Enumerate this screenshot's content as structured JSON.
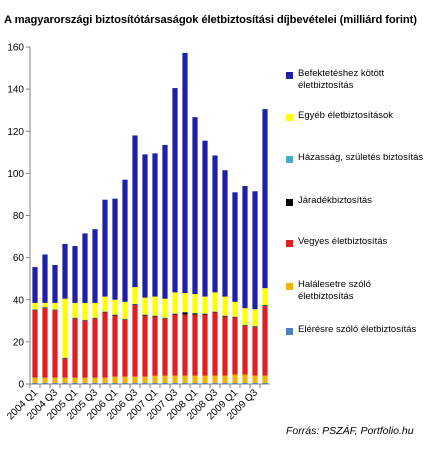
{
  "title": "A magyarországi biztosítótársaságok életbiztosítási díjbevételei (milliárd forint)",
  "source": "Forrás: PSZÁF, Portfolio.hu",
  "chart_data": {
    "type": "bar",
    "stacked": true,
    "title": "A magyarországi biztosítótársaságok életbiztosítási díjbevételei (milliárd forint)",
    "xlabel": "",
    "ylabel": "",
    "ylim": [
      0,
      160
    ],
    "yticks": [
      0,
      20,
      40,
      60,
      80,
      100,
      120,
      140,
      160
    ],
    "grid": false,
    "legend_position": "right",
    "categories": [
      "2004 Q1",
      "2004 Q2",
      "2004 Q3",
      "2004 Q4",
      "2005 Q1",
      "2005 Q2",
      "2005 Q3",
      "2005 Q4",
      "2006 Q1",
      "2006 Q2",
      "2006 Q3",
      "2006 Q4",
      "2007 Q1",
      "2007 Q2",
      "2007 Q3",
      "2007 Q4",
      "2008 Q1",
      "2008 Q2",
      "2008 Q3",
      "2008 Q4",
      "2009 Q1",
      "2009 Q2",
      "2009 Q3",
      "2009 Q4"
    ],
    "tick_labels": [
      "2004 Q1",
      "",
      "2004 Q3",
      "",
      "2005 Q1",
      "",
      "2005 Q3",
      "",
      "2006 Q1",
      "",
      "2006 Q3",
      "",
      "2007 Q1",
      "",
      "2007 Q3",
      "",
      "2008 Q1",
      "",
      "2008 Q3",
      "",
      "2009 Q1",
      "",
      "2009 Q3",
      ""
    ],
    "series": [
      {
        "name": "Elérésre szóló életbiztosítás",
        "color": "#4f81bd",
        "values": [
          0.5,
          0.5,
          0.5,
          0.5,
          0.5,
          0.5,
          0.5,
          0.5,
          0.5,
          0.5,
          0.5,
          0.5,
          0.5,
          0.5,
          0.5,
          0.5,
          0.5,
          0.5,
          0.5,
          0.5,
          0.5,
          0.5,
          0.5,
          0.5
        ]
      },
      {
        "name": "Halálesetre szóló életbiztosítás",
        "color": "#f0b400",
        "values": [
          2.5,
          2.5,
          2.5,
          2.5,
          2.5,
          2.5,
          2.5,
          2.5,
          3,
          3,
          3,
          3,
          3.5,
          3.5,
          3.5,
          3.5,
          3.5,
          3.5,
          3.5,
          3.5,
          4,
          4,
          3.5,
          3.5
        ]
      },
      {
        "name": "Vegyes életbiztosítás",
        "color": "#e02020",
        "values": [
          32,
          33,
          32,
          9,
          28,
          27,
          28,
          31,
          29,
          27,
          34,
          29,
          28,
          27,
          29,
          29,
          29,
          29,
          30,
          28,
          27,
          23,
          23,
          33
        ]
      },
      {
        "name": "Járadékbiztosítás",
        "color": "#000000",
        "values": [
          0.3,
          0.3,
          0.3,
          0.3,
          0.3,
          0.3,
          0.3,
          0.3,
          0.3,
          0.3,
          0.3,
          0.3,
          0.3,
          0.3,
          0.3,
          1,
          0.5,
          0.3,
          0.3,
          0.3,
          0.3,
          0.3,
          0.3,
          0.3
        ]
      },
      {
        "name": "Házasság, születés biztosítás",
        "color": "#4bacc6",
        "values": [
          0.2,
          0.2,
          0.2,
          0.2,
          0.2,
          0.2,
          0.2,
          0.2,
          0.2,
          0.2,
          0.2,
          0.2,
          0.2,
          0.2,
          0.2,
          0.2,
          0.2,
          0.2,
          0.2,
          0.2,
          0.2,
          0.2,
          0.2,
          0.2
        ]
      },
      {
        "name": "Egyéb életbiztosítások",
        "color": "#ffff00",
        "values": [
          3,
          2,
          3,
          28,
          7,
          8,
          7,
          7,
          7,
          8,
          8,
          8,
          9,
          9,
          10,
          9,
          9,
          8,
          9,
          9,
          7,
          8,
          8,
          8
        ]
      },
      {
        "name": "Befektetéshez kötött életbiztosítás",
        "color": "#1f1fa8",
        "values": [
          17,
          23,
          18,
          26,
          27,
          33,
          35,
          46,
          48,
          58,
          72,
          68,
          68,
          73,
          97,
          114,
          84,
          74,
          65,
          60,
          52,
          58,
          56,
          85
        ]
      }
    ]
  },
  "legend": [
    {
      "label": "Befektetéshez kötött életbiztosítás",
      "color": "#1f1fa8"
    },
    {
      "label": "Egyéb életbiztosítások",
      "color": "#ffff00"
    },
    {
      "label": "Házasság, születés biztosítás",
      "color": "#4bacc6"
    },
    {
      "label": "Járadékbiztosítás",
      "color": "#000000"
    },
    {
      "label": "Vegyes életbiztosítás",
      "color": "#e02020"
    },
    {
      "label": "Halálesetre szóló életbiztosítás",
      "color": "#f0b400"
    },
    {
      "label": "Elérésre szóló életbiztosítás",
      "color": "#4f81bd"
    }
  ]
}
